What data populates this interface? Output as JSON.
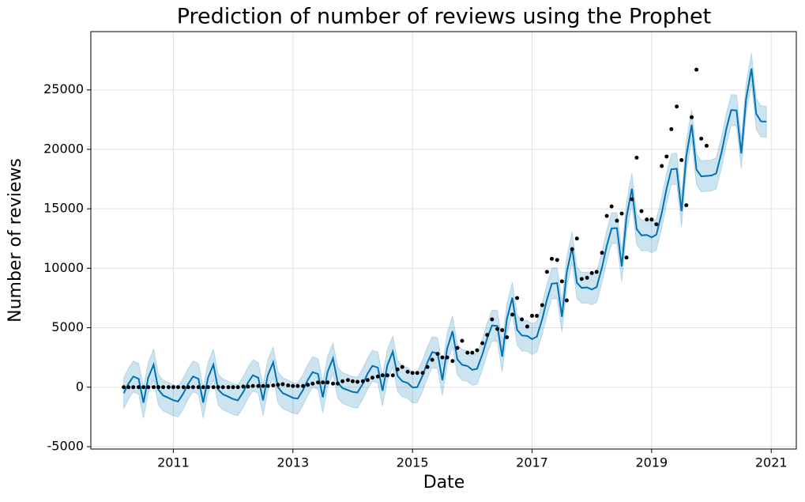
{
  "chart_data": {
    "type": "line",
    "title": "Prediction of number of reviews using the Prophet",
    "xlabel": "Date",
    "ylabel": "Number of reviews",
    "xlim": [
      2009.62,
      2021.42
    ],
    "ylim": [
      -5200,
      29900
    ],
    "xticks": [
      2011,
      2013,
      2015,
      2017,
      2019,
      2021
    ],
    "yticks": [
      -5000,
      0,
      5000,
      10000,
      15000,
      20000,
      25000
    ],
    "grid": true,
    "x": [
      2010.17,
      2010.25,
      2010.33,
      2010.42,
      2010.5,
      2010.58,
      2010.67,
      2010.75,
      2010.83,
      2010.92,
      2011,
      2011.08,
      2011.17,
      2011.25,
      2011.33,
      2011.42,
      2011.5,
      2011.58,
      2011.67,
      2011.75,
      2011.83,
      2011.92,
      2012,
      2012.08,
      2012.17,
      2012.25,
      2012.33,
      2012.42,
      2012.5,
      2012.58,
      2012.67,
      2012.75,
      2012.83,
      2012.92,
      2013,
      2013.08,
      2013.17,
      2013.25,
      2013.33,
      2013.42,
      2013.5,
      2013.58,
      2013.67,
      2013.75,
      2013.83,
      2013.92,
      2014,
      2014.08,
      2014.17,
      2014.25,
      2014.33,
      2014.42,
      2014.5,
      2014.58,
      2014.67,
      2014.75,
      2014.83,
      2014.92,
      2015,
      2015.08,
      2015.17,
      2015.25,
      2015.33,
      2015.42,
      2015.5,
      2015.58,
      2015.67,
      2015.75,
      2015.83,
      2015.92,
      2016,
      2016.08,
      2016.17,
      2016.25,
      2016.33,
      2016.42,
      2016.5,
      2016.58,
      2016.67,
      2016.75,
      2016.83,
      2016.92,
      2017,
      2017.08,
      2017.17,
      2017.25,
      2017.33,
      2017.42,
      2017.5,
      2017.58,
      2017.67,
      2017.75,
      2017.83,
      2017.92,
      2018,
      2018.08,
      2018.17,
      2018.25,
      2018.33,
      2018.42,
      2018.5,
      2018.58,
      2018.67,
      2018.75,
      2018.83,
      2018.92,
      2019,
      2019.08,
      2019.17,
      2019.25,
      2019.33,
      2019.42,
      2019.5,
      2019.58,
      2019.67,
      2019.75,
      2019.83,
      2019.92,
      2020,
      2020.08,
      2020.17,
      2020.25,
      2020.33,
      2020.42,
      2020.5,
      2020.58,
      2020.67,
      2020.75,
      2020.83,
      2020.92
    ],
    "series": [
      {
        "kind": "scatter",
        "color": "#000000",
        "values": [
          0,
          0,
          0,
          0,
          0,
          0,
          0,
          0,
          0,
          0,
          0,
          0,
          0,
          0,
          0,
          0,
          0,
          0,
          0,
          0,
          0,
          0,
          0,
          0,
          50,
          50,
          100,
          100,
          100,
          100,
          150,
          200,
          250,
          150,
          100,
          100,
          100,
          200,
          300,
          400,
          400,
          400,
          300,
          300,
          500,
          600,
          500,
          450,
          500,
          600,
          800,
          900,
          1000,
          1000,
          1000,
          1500,
          1700,
          1300,
          1200,
          1200,
          1200,
          1700,
          2300,
          2800,
          2500,
          2500,
          2200,
          3300,
          3900,
          2900,
          2900,
          3100,
          3700,
          4400,
          5700,
          4900,
          4800,
          4200,
          6100,
          7500,
          5700,
          5100,
          6000,
          6000,
          6900,
          9700,
          10800,
          10700,
          8900,
          7300,
          11600,
          12500,
          9100,
          9200,
          9600,
          9700,
          11300,
          14400,
          15200,
          14000,
          14600,
          10900,
          15800,
          19300,
          14800,
          14100,
          14100,
          13700,
          18600,
          19400,
          21700,
          23600,
          19100,
          15300,
          22700,
          26700,
          20900,
          20300,
          null,
          null,
          null,
          null,
          null,
          null,
          null,
          null,
          null,
          null,
          null,
          null
        ]
      },
      {
        "kind": "line",
        "color": "#0072b2",
        "values": [
          -500,
          300,
          900,
          700,
          -1300,
          800,
          1900,
          -200,
          -700,
          -900,
          -1100,
          -1200,
          -500,
          300,
          900,
          700,
          -1300,
          800,
          1900,
          -200,
          -600,
          -800,
          -1000,
          -1100,
          -400,
          400,
          1000,
          800,
          -1100,
          1000,
          2100,
          0,
          -500,
          -700,
          -900,
          -960,
          -220,
          630,
          1270,
          1110,
          -850,
          1290,
          2430,
          380,
          -80,
          -240,
          -400,
          -450,
          300,
          1150,
          1800,
          1650,
          -300,
          1850,
          3000,
          950,
          500,
          350,
          -20,
          0,
          980,
          2090,
          2950,
          2850,
          590,
          3250,
          4710,
          2340,
          1880,
          1780,
          1460,
          1550,
          2770,
          4120,
          5190,
          5150,
          2580,
          5750,
          7530,
          4820,
          4350,
          4310,
          4040,
          4250,
          5730,
          7380,
          8710,
          8750,
          5920,
          9650,
          11770,
          8780,
          8350,
          8390,
          8220,
          8420,
          10070,
          11890,
          13350,
          13380,
          10160,
          14320,
          16690,
          13290,
          12770,
          12800,
          12600,
          12830,
          14670,
          16700,
          18330,
          18370,
          14800,
          19430,
          22070,
          18300,
          17730,
          17770,
          17800,
          17980,
          19750,
          21730,
          23300,
          23280,
          19650,
          24230,
          26800,
          22980,
          22350,
          22330
        ],
        "lower": [
          -1800,
          -1000,
          -400,
          -600,
          -2600,
          -500,
          600,
          -1500,
          -2000,
          -2200,
          -2400,
          -2500,
          -1800,
          -1000,
          -400,
          -600,
          -2600,
          -500,
          600,
          -1500,
          -1900,
          -2100,
          -2300,
          -2400,
          -1700,
          -900,
          -300,
          -500,
          -2400,
          -300,
          800,
          -1300,
          -1800,
          -2000,
          -2200,
          -2260,
          -1520,
          -670,
          -30,
          -190,
          -2150,
          -10,
          1130,
          -920,
          -1380,
          -1540,
          -1700,
          -1750,
          -1000,
          -150,
          500,
          350,
          -1600,
          550,
          1700,
          -350,
          -800,
          -950,
          -1320,
          -1300,
          -320,
          790,
          1650,
          1550,
          -710,
          1950,
          3410,
          1040,
          580,
          480,
          160,
          250,
          1470,
          2820,
          3890,
          3850,
          1280,
          4450,
          6230,
          3520,
          3050,
          3010,
          2740,
          2950,
          4430,
          6080,
          7410,
          7450,
          4620,
          8350,
          10470,
          7480,
          7050,
          7090,
          6920,
          7120,
          8770,
          10590,
          12050,
          12080,
          8860,
          13020,
          15390,
          11990,
          11470,
          11500,
          11300,
          11530,
          13370,
          15400,
          17030,
          17070,
          13500,
          18130,
          20770,
          17000,
          16430,
          16470,
          16500,
          16680,
          18450,
          20430,
          22000,
          21980,
          18350,
          22930,
          25500,
          21680,
          21050,
          21030
        ],
        "upper": [
          800,
          1600,
          2200,
          2000,
          0,
          2100,
          3200,
          1100,
          600,
          400,
          200,
          100,
          800,
          1600,
          2200,
          2000,
          0,
          2100,
          3200,
          1100,
          700,
          500,
          300,
          200,
          900,
          1700,
          2300,
          2100,
          200,
          2300,
          3400,
          1300,
          800,
          600,
          400,
          340,
          1080,
          1930,
          2570,
          2410,
          450,
          2590,
          3730,
          1680,
          1220,
          1060,
          900,
          850,
          1600,
          2450,
          3100,
          2950,
          1000,
          3150,
          4300,
          2250,
          1800,
          1650,
          1280,
          1300,
          2280,
          3390,
          4250,
          4150,
          1890,
          4550,
          6010,
          3640,
          3180,
          3080,
          2760,
          2850,
          4070,
          5420,
          6490,
          6450,
          3880,
          7050,
          8830,
          6120,
          5650,
          5610,
          5340,
          5550,
          7030,
          8680,
          10010,
          10050,
          7220,
          10950,
          13070,
          10080,
          9650,
          9690,
          9520,
          9720,
          11370,
          13190,
          14650,
          14680,
          11460,
          15620,
          17990,
          14590,
          14070,
          14100,
          13900,
          14130,
          15970,
          18000,
          19630,
          19670,
          16100,
          20730,
          23370,
          19600,
          19030,
          19070,
          19100,
          19280,
          21050,
          23030,
          24600,
          24580,
          20950,
          25530,
          28100,
          24280,
          23650,
          23630
        ]
      }
    ]
  }
}
